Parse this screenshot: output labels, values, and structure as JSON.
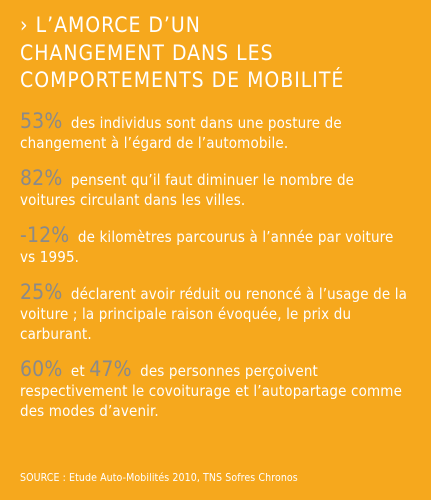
{
  "heading": {
    "chevron": "›",
    "line1": "L’AMORCE D’UN",
    "line2": "CHANGEMENT DANS LES",
    "line3": "COMPORTEMENTS DE MOBILITÉ"
  },
  "stats": [
    {
      "value": "53%",
      "text": "des individus sont dans une posture de changement à l’égard de l’automobile."
    },
    {
      "value": "82%",
      "text": "pensent qu’il faut diminuer le nombre de voitures circulant dans les villes."
    },
    {
      "value": "-12%",
      "text": "de kilomètres parcourus à l’année par voiture vs 1995."
    },
    {
      "value": "25%",
      "text": "déclarent avoir réduit ou renoncé à l’usage de la voiture ; la principale raison évoquée, le prix du carburant."
    },
    {
      "value": "60%",
      "connector": "et",
      "value2": "47%",
      "text": "des personnes perçoivent respectivement le covoiturage et l’autopartage comme des modes d’avenir."
    }
  ],
  "source": "SOURCE : Etude Auto-Mobilités 2010, TNS Sofres Chronos",
  "colors": {
    "background": "#f6a81d",
    "number": "#8a8a8a",
    "text": "#ffffff"
  }
}
